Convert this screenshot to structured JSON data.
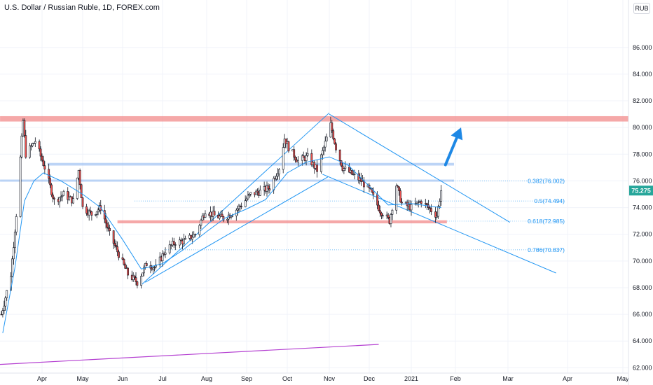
{
  "chart": {
    "title": "U.S. Dollar / Russian Ruble, 1D, FOREX.com",
    "currency_badge": "RUB",
    "last_price": "75.275",
    "colors": {
      "up": "#26a69a",
      "down": "#ef5350",
      "candle": "#131722",
      "ma": "#2196f3",
      "channel": "#2196f3",
      "resistance": "#f28b8b",
      "blue_zone": "#90b8f0",
      "fib": "#2196f3",
      "trend_purple": "#b43fd1",
      "arrow": "#1e88e5",
      "price_tag": "#26a69a"
    }
  },
  "chart_data": {
    "type": "candlestick",
    "y_axis": {
      "range": [
        61.6,
        88.4
      ],
      "ticks": [
        "62.000",
        "64.000",
        "66.000",
        "68.000",
        "70.000",
        "72.000",
        "74.000",
        "76.000",
        "78.000",
        "80.000",
        "82.000",
        "84.000",
        "86.000"
      ]
    },
    "x_axis": {
      "ticks": [
        "Apr",
        "May",
        "Jun",
        "Jul",
        "Aug",
        "Sep",
        "Oct",
        "Nov",
        "Dec",
        "2021",
        "Feb",
        "Mar",
        "Apr",
        "May"
      ],
      "tick_dates": [
        "2020-04-01",
        "2020-05-01",
        "2020-06-01",
        "2020-07-01",
        "2020-08-01",
        "2020-09-01",
        "2020-10-01",
        "2020-11-01",
        "2020-12-01",
        "2021-01-01",
        "2021-02-01",
        "2021-03-01",
        "2021-04-01",
        "2021-05-01"
      ]
    },
    "close_path": [
      [
        "2020-03-02",
        66.0
      ],
      [
        "2020-03-09",
        69.0
      ],
      [
        "2020-03-13",
        73.5
      ],
      [
        "2020-03-18",
        80.5
      ],
      [
        "2020-03-20",
        78.0
      ],
      [
        "2020-03-27",
        79.0
      ],
      [
        "2020-04-03",
        77.0
      ],
      [
        "2020-04-10",
        74.5
      ],
      [
        "2020-04-17",
        75.0
      ],
      [
        "2020-04-24",
        74.5
      ],
      [
        "2020-04-28",
        76.8
      ],
      [
        "2020-05-01",
        74.0
      ],
      [
        "2020-05-08",
        73.5
      ],
      [
        "2020-05-15",
        74.0
      ],
      [
        "2020-05-22",
        72.0
      ],
      [
        "2020-05-29",
        70.5
      ],
      [
        "2020-06-05",
        69.0
      ],
      [
        "2020-06-12",
        68.4
      ],
      [
        "2020-06-19",
        69.8
      ],
      [
        "2020-06-26",
        69.5
      ],
      [
        "2020-07-03",
        70.8
      ],
      [
        "2020-07-10",
        71.4
      ],
      [
        "2020-07-17",
        71.5
      ],
      [
        "2020-07-24",
        72.0
      ],
      [
        "2020-07-31",
        73.8
      ],
      [
        "2020-08-07",
        73.4
      ],
      [
        "2020-08-14",
        73.2
      ],
      [
        "2020-08-21",
        73.6
      ],
      [
        "2020-08-28",
        74.2
      ],
      [
        "2020-09-04",
        75.0
      ],
      [
        "2020-09-11",
        75.2
      ],
      [
        "2020-09-18",
        75.5
      ],
      [
        "2020-09-25",
        77.0
      ],
      [
        "2020-09-29",
        79.2
      ],
      [
        "2020-10-02",
        78.5
      ],
      [
        "2020-10-09",
        77.5
      ],
      [
        "2020-10-16",
        77.8
      ],
      [
        "2020-10-23",
        76.8
      ],
      [
        "2020-10-28",
        78.5
      ],
      [
        "2020-11-02",
        80.2
      ],
      [
        "2020-11-06",
        78.5
      ],
      [
        "2020-11-11",
        77.0
      ],
      [
        "2020-11-18",
        76.5
      ],
      [
        "2020-11-25",
        76.0
      ],
      [
        "2020-12-02",
        75.2
      ],
      [
        "2020-12-09",
        73.8
      ],
      [
        "2020-12-16",
        73.0
      ],
      [
        "2020-12-21",
        75.7
      ],
      [
        "2020-12-25",
        74.3
      ],
      [
        "2021-01-01",
        74.0
      ],
      [
        "2021-01-08",
        74.5
      ],
      [
        "2021-01-15",
        73.8
      ],
      [
        "2021-01-19",
        73.4
      ],
      [
        "2021-01-22",
        75.275
      ]
    ],
    "series": [
      {
        "name": "",
        "kind": "moving_average",
        "points": [
          [
            "2020-03-03",
            64.6
          ],
          [
            "2020-03-12",
            69.5
          ],
          [
            "2020-03-19",
            74.5
          ],
          [
            "2020-03-26",
            76.0
          ],
          [
            "2020-04-02",
            76.6
          ],
          [
            "2020-04-15",
            76.0
          ],
          [
            "2020-05-01",
            75.0
          ],
          [
            "2020-05-15",
            74.0
          ],
          [
            "2020-06-01",
            71.6
          ],
          [
            "2020-06-15",
            69.4
          ],
          [
            "2020-07-01",
            69.8
          ],
          [
            "2020-07-15",
            70.8
          ],
          [
            "2020-08-01",
            72.2
          ],
          [
            "2020-08-15",
            73.2
          ],
          [
            "2020-09-01",
            73.9
          ],
          [
            "2020-09-15",
            74.6
          ],
          [
            "2020-10-01",
            76.6
          ],
          [
            "2020-10-15",
            77.4
          ],
          [
            "2020-11-01",
            77.8
          ],
          [
            "2020-11-15",
            77.2
          ],
          [
            "2020-12-01",
            75.6
          ],
          [
            "2020-12-15",
            74.2
          ],
          [
            "2021-01-01",
            74.3
          ],
          [
            "2021-01-22",
            74.0
          ]
        ]
      }
    ],
    "annotations": {
      "resistance_zones": [
        {
          "y1": 80.45,
          "y2": 80.85,
          "x_start": "2020-03-01",
          "x_end": "2021-05-22",
          "color": "#f28b8b"
        },
        {
          "y1": 72.82,
          "y2": 73.05,
          "x_start": "2020-05-28",
          "x_end": "2021-01-26",
          "color": "#f28b8b"
        }
      ],
      "support_zones": [
        {
          "y1": 75.95,
          "y2": 76.1,
          "x_start": "2020-03-01",
          "x_end": "2021-01-31",
          "color": "#90b8f0"
        },
        {
          "y1": 77.15,
          "y2": 77.35,
          "x_start": "2020-04-05",
          "x_end": "2021-01-31",
          "color": "#90b8f0"
        }
      ],
      "fib_levels": [
        {
          "label": "0.382(76.002)",
          "value": 76.002,
          "x_start": "2021-01-30"
        },
        {
          "label": "0.5(74.494)",
          "value": 74.494,
          "x_start": "2020-06-10"
        },
        {
          "label": "0.618(72.985)",
          "value": 72.985,
          "x_start": "2021-01-26"
        },
        {
          "label": "0.786(70.837)",
          "value": 70.837,
          "x_start": "2020-07-02"
        }
      ],
      "channel_lines": [
        {
          "from": [
            "2020-06-15",
            68.2
          ],
          "to": [
            "2020-11-01",
            81.1
          ]
        },
        {
          "from": [
            "2020-06-18",
            68.4
          ],
          "to": [
            "2020-10-31",
            76.3
          ]
        },
        {
          "from": [
            "2020-11-01",
            81.0
          ],
          "to": [
            "2021-03-02",
            72.9
          ]
        },
        {
          "from": [
            "2020-10-27",
            76.5
          ],
          "to": [
            "2021-03-26",
            69.1
          ]
        }
      ],
      "long_trendline": {
        "from": [
          "2020-02-22",
          62.25
        ],
        "to": [
          "2020-12-08",
          63.75
        ],
        "color": "#b43fd1"
      },
      "arrow": {
        "from": [
          "2021-01-25",
          77.2
        ],
        "to": [
          "2021-02-04",
          80.0
        ],
        "color": "#1e88e5"
      }
    }
  }
}
